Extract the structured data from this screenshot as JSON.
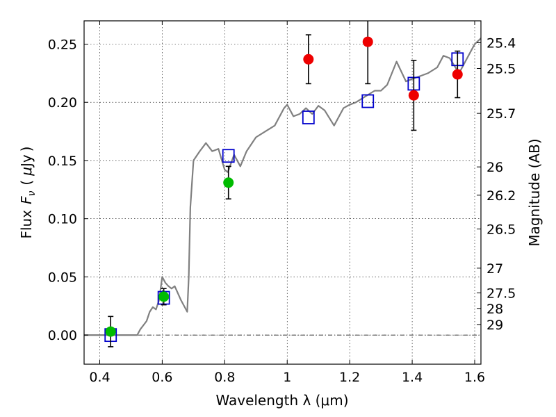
{
  "chart_data": {
    "type": "scatter",
    "xlabel": "Wavelength  λ (μm)",
    "ylabel": "Flux  F_ν  ( μJy )",
    "ylabel_parts": [
      "Flux",
      "F",
      "ν",
      "(",
      "μ",
      "Jy",
      ")"
    ],
    "y2label": "Magnitude (AB)",
    "xlim": [
      0.35,
      1.62
    ],
    "ylim": [
      -0.025,
      0.27
    ],
    "grid": true,
    "xticks": [
      0.4,
      0.6,
      0.8,
      1.0,
      1.2,
      1.4,
      1.6
    ],
    "xtick_labels": [
      "0.4",
      "0.6",
      "0.8",
      "1",
      "1.2",
      "1.4",
      "1.6"
    ],
    "yticks": [
      0.0,
      0.05,
      0.1,
      0.15,
      0.2,
      0.25
    ],
    "ytick_labels": [
      "0.00",
      "0.05",
      "0.10",
      "0.15",
      "0.20",
      "0.25"
    ],
    "y2ticks": [
      {
        "flux": 0.2512,
        "label": "25.4"
      },
      {
        "flux": 0.2291,
        "label": "25.5"
      },
      {
        "flux": 0.1905,
        "label": "25.7"
      },
      {
        "flux": 0.1445,
        "label": "26"
      },
      {
        "flux": 0.1202,
        "label": "26.2"
      },
      {
        "flux": 0.0912,
        "label": "26.5"
      },
      {
        "flux": 0.0575,
        "label": "27"
      },
      {
        "flux": 0.0363,
        "label": "27.5"
      },
      {
        "flux": 0.0229,
        "label": "28"
      },
      {
        "flux": 0.0091,
        "label": "29"
      }
    ],
    "zero_line": 0.0,
    "series": [
      {
        "kind": "line",
        "color": "#808080",
        "x": [
          0.35,
          0.52,
          0.53,
          0.55,
          0.56,
          0.57,
          0.58,
          0.59,
          0.6,
          0.61,
          0.62,
          0.63,
          0.64,
          0.66,
          0.68,
          0.685,
          0.69,
          0.7,
          0.72,
          0.74,
          0.76,
          0.78,
          0.8,
          0.81,
          0.83,
          0.85,
          0.87,
          0.9,
          0.93,
          0.96,
          0.99,
          1.0,
          1.02,
          1.04,
          1.06,
          1.08,
          1.1,
          1.12,
          1.15,
          1.18,
          1.2,
          1.22,
          1.25,
          1.28,
          1.3,
          1.32,
          1.35,
          1.38,
          1.4,
          1.42,
          1.45,
          1.48,
          1.5,
          1.52,
          1.55,
          1.58,
          1.6,
          1.62
        ],
        "y": [
          0.0,
          0.0,
          0.005,
          0.012,
          0.02,
          0.024,
          0.022,
          0.03,
          0.05,
          0.045,
          0.042,
          0.04,
          0.042,
          0.03,
          0.02,
          0.05,
          0.11,
          0.15,
          0.158,
          0.165,
          0.158,
          0.16,
          0.142,
          0.14,
          0.155,
          0.145,
          0.158,
          0.17,
          0.175,
          0.18,
          0.195,
          0.198,
          0.188,
          0.19,
          0.195,
          0.19,
          0.197,
          0.193,
          0.18,
          0.195,
          0.198,
          0.2,
          0.205,
          0.21,
          0.21,
          0.215,
          0.235,
          0.218,
          0.22,
          0.222,
          0.225,
          0.23,
          0.24,
          0.238,
          0.225,
          0.24,
          0.25,
          0.255
        ]
      },
      {
        "kind": "squares",
        "color": "#0000cc",
        "x": [
          0.435,
          0.605,
          0.812,
          1.068,
          1.258,
          1.405,
          1.545
        ],
        "y": [
          0.0,
          0.032,
          0.154,
          0.187,
          0.201,
          0.216,
          0.237
        ]
      },
      {
        "kind": "points",
        "color": "#00bb00",
        "x": [
          0.435,
          0.605,
          0.812
        ],
        "y": [
          0.003,
          0.033,
          0.131
        ],
        "yerr": [
          0.013,
          0.007,
          0.014
        ]
      },
      {
        "kind": "points",
        "color": "#ee0000",
        "x": [
          1.068,
          1.258,
          1.405,
          1.545
        ],
        "y": [
          0.237,
          0.252,
          0.206,
          0.224
        ],
        "yerr": [
          0.021,
          0.036,
          0.03,
          0.02
        ]
      }
    ]
  }
}
